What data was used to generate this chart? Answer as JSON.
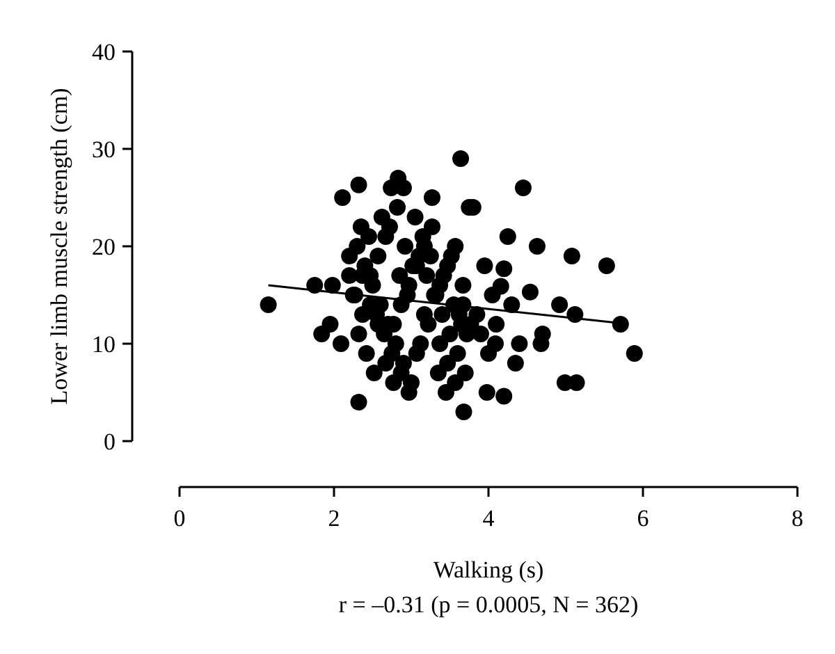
{
  "chart_data": {
    "type": "scatter",
    "xlabel": "Walking (s)",
    "ylabel": "Lower limb muscle strength (cm)",
    "annotations": [
      "r = –0.31 (p = 0.0005, N = 362)"
    ],
    "xlim": [
      0,
      8
    ],
    "ylim": [
      0,
      40
    ],
    "xticks": [
      0,
      2,
      4,
      6,
      8
    ],
    "yticks": [
      0,
      10,
      20,
      30,
      40
    ],
    "grid": false,
    "series": [
      {
        "type": "scatter",
        "marker": "circle",
        "color": "#000000",
        "x": [
          1.15,
          1.75,
          1.98,
          1.84,
          2.09,
          1.95,
          2.32,
          2.11,
          2.32,
          3.64,
          2.74,
          2.83,
          2.9,
          4.45,
          3.8,
          4.63,
          5.08,
          5.53,
          4.54,
          4.92,
          5.12,
          5.71,
          5.89,
          4.99,
          5.14,
          4.09,
          4.68,
          4.7,
          3.98,
          4.2,
          3.68,
          4.2,
          4.16,
          2.3,
          2.4,
          2.5,
          2.6,
          2.7,
          2.8,
          2.9,
          3.0,
          3.1,
          3.2,
          3.3,
          3.4,
          3.5,
          3.6,
          3.7,
          2.35,
          2.45,
          2.55,
          2.65,
          2.75,
          2.85,
          2.95,
          3.05,
          3.15,
          3.25,
          3.35,
          3.45,
          3.55,
          3.65,
          3.75,
          2.27,
          2.37,
          2.47,
          2.57,
          2.67,
          2.77,
          2.87,
          2.97,
          3.07,
          3.17,
          3.27,
          3.37,
          3.47,
          3.57,
          3.67,
          2.32,
          2.42,
          2.52,
          2.62,
          2.72,
          2.82,
          2.92,
          3.02,
          3.12,
          3.22,
          3.32,
          3.42,
          3.52,
          3.62,
          3.72,
          2.37,
          2.47,
          2.57,
          2.67,
          2.77,
          2.87,
          2.97,
          3.07,
          3.17,
          3.27,
          3.37,
          3.47,
          3.57,
          3.67,
          3.77,
          3.85,
          3.9,
          4.0,
          4.1,
          4.3,
          4.4,
          3.95,
          4.05,
          4.25,
          4.35,
          2.2,
          2.2,
          2.25
        ],
        "values": [
          14,
          16,
          16,
          11,
          10,
          12,
          4,
          25,
          26.3,
          29,
          26,
          27,
          26,
          26,
          24,
          20,
          19,
          18,
          15.3,
          14,
          13,
          12,
          9,
          6,
          6,
          10,
          10,
          11,
          5,
          4.6,
          3,
          17.7,
          15.9,
          20,
          18,
          16,
          14,
          12,
          10,
          8,
          6,
          19,
          17,
          15,
          13,
          11,
          9,
          7,
          22,
          21,
          13,
          11,
          9,
          17,
          15,
          23,
          21,
          19,
          7,
          5,
          14,
          12,
          24,
          15,
          13,
          17,
          19,
          21,
          12,
          14,
          16,
          18,
          20,
          22,
          10,
          8,
          6,
          16,
          11,
          9,
          7,
          23,
          22,
          24,
          20,
          18,
          10,
          12,
          15,
          17,
          19,
          13,
          11,
          17,
          14,
          12,
          8,
          6,
          7,
          5,
          9,
          13,
          25,
          16,
          18,
          20,
          14,
          12,
          13,
          11,
          9,
          12,
          14,
          10,
          18,
          15,
          21,
          8,
          19,
          17,
          15
        ]
      },
      {
        "type": "line",
        "color": "#000000",
        "x": [
          1.15,
          5.71
        ],
        "values": [
          16,
          12.1
        ]
      }
    ]
  }
}
